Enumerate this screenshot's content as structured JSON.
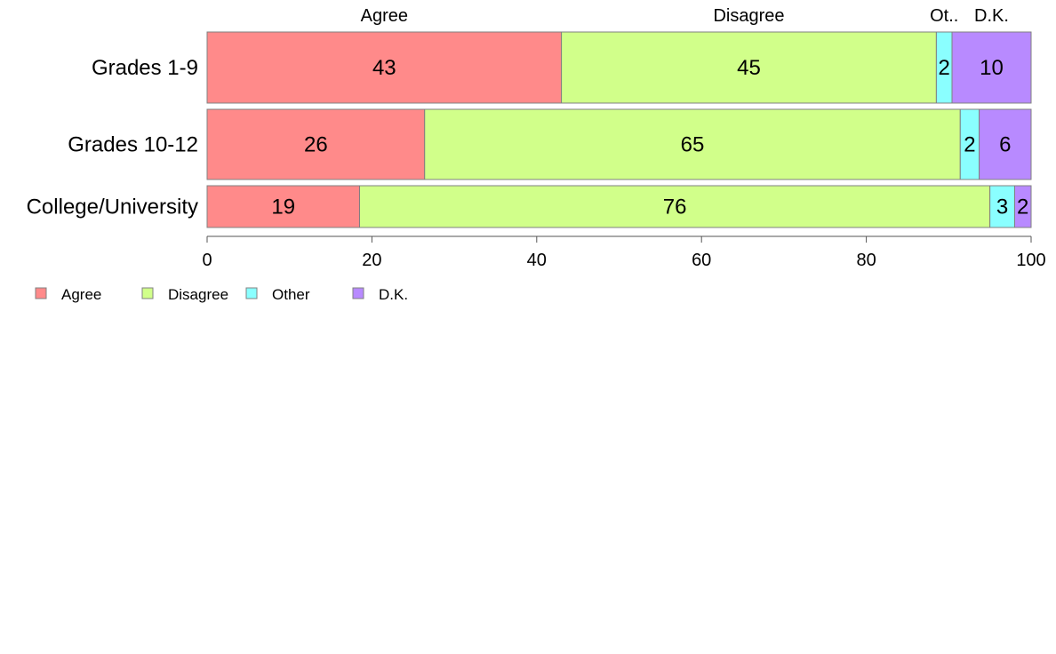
{
  "chart_data": {
    "type": "bar",
    "orientation": "horizontal",
    "stacked": true,
    "categories": [
      "Grades 1-9",
      "Grades 10-12",
      "College/University"
    ],
    "series": [
      {
        "name": "Agree",
        "values": [
          43,
          26,
          19
        ],
        "color": "#FF8A8A"
      },
      {
        "name": "Disagree",
        "values": [
          45,
          65,
          76
        ],
        "color": "#D1FF8A"
      },
      {
        "name": "Other",
        "values": [
          2,
          2,
          3
        ],
        "color": "#8AFFFF"
      },
      {
        "name": "D.K.",
        "values": [
          10,
          6,
          2
        ],
        "color": "#B88AFF"
      }
    ],
    "segment_totals": [
      [
        43.0,
        45.5,
        1.9,
        9.6
      ],
      [
        26.4,
        65.0,
        2.3,
        6.3
      ],
      [
        18.5,
        76.5,
        3.0,
        2.0
      ]
    ],
    "top_labels": [
      "Agree",
      "Disagree",
      "Ot..",
      "D.K."
    ],
    "xlim": [
      0,
      100
    ],
    "xticks": [
      0,
      20,
      40,
      60,
      80,
      100
    ],
    "legend_position": "bottom-left",
    "grid": false
  }
}
